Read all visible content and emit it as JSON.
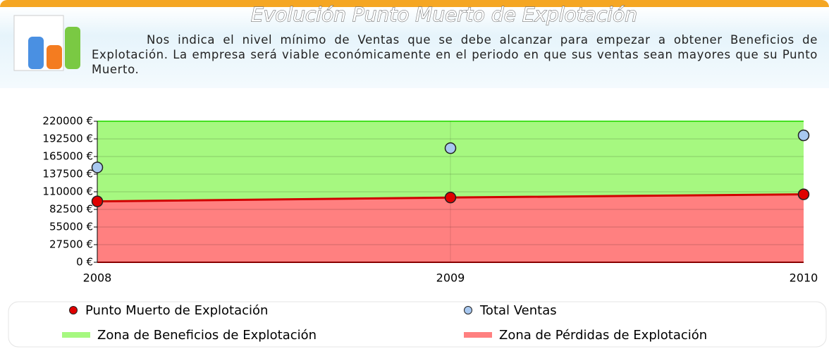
{
  "chart_data": {
    "type": "line",
    "title": "Evolución Punto Muerto de Explotación",
    "description": "Nos indica el nivel mínimo de Ventas  que se debe alcanzar para empezar a obtener Beneficios de Explotación. La empresa será viable económicamente en el periodo en que sus ventas sean mayores que su Punto Muerto.",
    "categories": [
      "2008",
      "2009",
      "2010"
    ],
    "series": [
      {
        "name": "Punto Muerto de Explotación",
        "color": "#e00000",
        "values": [
          95000,
          101000,
          106000
        ]
      },
      {
        "name": "Total Ventas",
        "color": "#a8c8f0",
        "values": [
          148000,
          178000,
          198000
        ]
      }
    ],
    "areas": [
      {
        "name": "Zona de Beneficios de Explotación",
        "color": "#a6f880"
      },
      {
        "name": "Zona de Pérdidas de Explotación",
        "color": "#ff8080"
      }
    ],
    "ylim": [
      0,
      220000
    ],
    "yticks": [
      {
        "value": 0,
        "label": "0 €"
      },
      {
        "value": 27500,
        "label": "27500 €"
      },
      {
        "value": 55000,
        "label": "55000 €"
      },
      {
        "value": 82500,
        "label": "82500 €"
      },
      {
        "value": 110000,
        "label": "110000 €"
      },
      {
        "value": 137500,
        "label": "137500 €"
      },
      {
        "value": 165000,
        "label": "165000 €"
      },
      {
        "value": 192500,
        "label": "192500 €"
      },
      {
        "value": 220000,
        "label": "220000 €"
      }
    ],
    "grid": true
  }
}
